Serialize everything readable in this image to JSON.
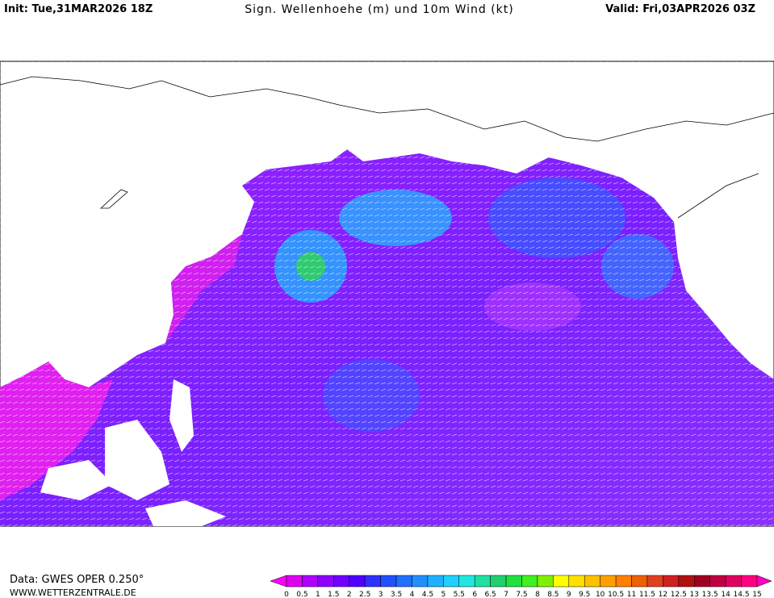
{
  "header": {
    "init": "Init: Tue,31MAR2026 18Z",
    "title": "Sign. Wellenhoehe (m) und 10m Wind (kt)",
    "valid": "Valid: Fri,03APR2026 03Z"
  },
  "footer": {
    "data_source": "Data: GWES OPER 0.250°",
    "website": "WWW.WETTERZENTRALE.DE"
  },
  "colorbar": {
    "labels": [
      0,
      0.5,
      1,
      1.5,
      2,
      2.5,
      3,
      3.5,
      4,
      4.5,
      5,
      5.5,
      6,
      6.5,
      7,
      7.5,
      8,
      8.5,
      9,
      9.5,
      10,
      10.5,
      11,
      11.5,
      12,
      12.5,
      13,
      13.5,
      14,
      14.5,
      15
    ],
    "low_color": "#ff00ff",
    "colors": [
      "#e000f0",
      "#b000ff",
      "#9000ff",
      "#7000ff",
      "#5000ff",
      "#3030ff",
      "#2050ff",
      "#2070ff",
      "#2090ff",
      "#20b0ff",
      "#20d0ff",
      "#20e8e0",
      "#20e0a0",
      "#20d070",
      "#20e040",
      "#40f020",
      "#80f000",
      "#ffff00",
      "#ffe000",
      "#ffc000",
      "#ffa000",
      "#ff8000",
      "#ee6000",
      "#e04020",
      "#d02020",
      "#b01010",
      "#a00020",
      "#c00040",
      "#e00060",
      "#ff0080"
    ],
    "high_color": "#ff00c0"
  }
}
